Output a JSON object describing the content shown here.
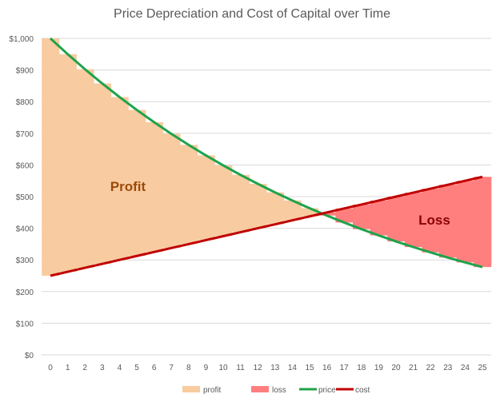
{
  "chart_data": {
    "type": "area",
    "title": "Price Depreciation and Cost of Capital over Time",
    "xlabel": "",
    "ylabel": "",
    "x": [
      0,
      1,
      2,
      3,
      4,
      5,
      6,
      7,
      8,
      9,
      10,
      11,
      12,
      13,
      14,
      15,
      16,
      17,
      18,
      19,
      20,
      21,
      22,
      23,
      24,
      25
    ],
    "ylim": [
      0,
      1000
    ],
    "yticks": [
      0,
      100,
      200,
      300,
      400,
      500,
      600,
      700,
      800,
      900,
      1000
    ],
    "ytick_labels": [
      "$0",
      "$100",
      "$200",
      "$300",
      "$400",
      "$500",
      "$600",
      "$700",
      "$800",
      "$900",
      "$1,000"
    ],
    "grid": true,
    "legend_placement": "bottom",
    "series": [
      {
        "name": "profit",
        "kind": "stacked-area",
        "color": "#f8cba0",
        "values": [
          750,
          687.5,
          627.5,
          569.9,
          514.5,
          461.3,
          410.1,
          360.8,
          313.4,
          267.7,
          223.7,
          181.3,
          140.4,
          100.8,
          62.7,
          25.8,
          0,
          0,
          0,
          0,
          0,
          0,
          0,
          0,
          0,
          0
        ]
      },
      {
        "name": "loss",
        "kind": "stacked-area",
        "color": "#ff7f7f",
        "values": [
          0,
          0,
          0,
          0,
          0,
          0,
          0,
          0,
          0,
          0,
          0,
          0,
          0,
          0,
          0,
          0,
          9.9,
          44.4,
          77.8,
          110.1,
          141.5,
          171.9,
          201.4,
          230.1,
          258,
          285.1
        ]
      },
      {
        "name": "price",
        "kind": "line",
        "color": "#1fa34a",
        "values": [
          1000,
          950,
          902.5,
          857.4,
          814.5,
          773.8,
          735.1,
          698.3,
          663.4,
          630.2,
          598.7,
          568.8,
          540.4,
          513.3,
          487.7,
          463.3,
          440.1,
          418.1,
          397.2,
          377.4,
          358.5,
          340.6,
          323.6,
          307.4,
          292,
          277.4
        ]
      },
      {
        "name": "cost",
        "kind": "line",
        "color": "#c00000",
        "values": [
          250,
          262.5,
          275,
          287.5,
          300,
          312.5,
          325,
          337.5,
          350,
          362.5,
          375,
          387.5,
          400,
          412.5,
          425,
          437.5,
          450,
          462.5,
          475,
          487.5,
          500,
          512.5,
          525,
          537.5,
          550,
          562.5
        ]
      }
    ],
    "annotations": [
      {
        "text": "Profit",
        "color": "#9c4a0b"
      },
      {
        "text": "Loss",
        "color": "#8b0000"
      }
    ]
  }
}
